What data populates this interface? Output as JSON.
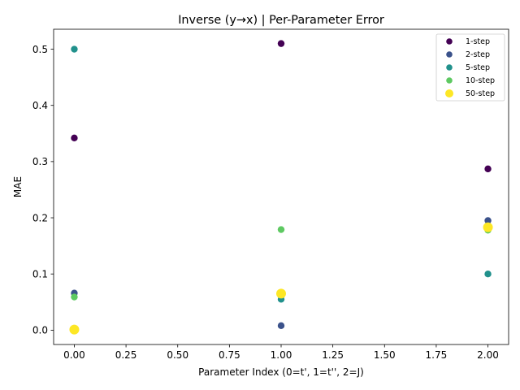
{
  "chart_data": {
    "type": "scatter",
    "title": "Inverse (y→x) | Per-Parameter Error",
    "xlabel": "Parameter Index (0=t', 1=t'', 2=J)",
    "ylabel": "MAE",
    "xlim": [
      -0.1,
      2.1
    ],
    "ylim": [
      -0.0255,
      0.5355
    ],
    "x_ticks": [
      0.0,
      0.25,
      0.5,
      0.75,
      1.0,
      1.25,
      1.5,
      1.75,
      2.0
    ],
    "x_tick_labels": [
      "0.00",
      "0.25",
      "0.50",
      "0.75",
      "1.00",
      "1.25",
      "1.50",
      "1.75",
      "2.00"
    ],
    "y_ticks": [
      0.0,
      0.1,
      0.2,
      0.3,
      0.4,
      0.5
    ],
    "y_tick_labels": [
      "0.0",
      "0.1",
      "0.2",
      "0.3",
      "0.4",
      "0.5"
    ],
    "grid": false,
    "legend_position": "top-right",
    "series": [
      {
        "name": "1-step",
        "color": "#440154",
        "x": [
          0,
          1,
          2
        ],
        "y": [
          0.342,
          0.51,
          0.287
        ]
      },
      {
        "name": "2-step",
        "color": "#3b528b",
        "x": [
          0,
          1,
          2
        ],
        "y": [
          0.066,
          0.008,
          0.195
        ]
      },
      {
        "name": "5-step",
        "color": "#21918c",
        "x": [
          0,
          1,
          2
        ],
        "y": [
          0.5,
          0.055,
          0.1
        ]
      },
      {
        "name": "10-step",
        "color": "#5ec962",
        "x": [
          0,
          1,
          2
        ],
        "y": [
          0.059,
          0.179,
          0.178
        ]
      },
      {
        "name": "50-step",
        "color": "#fde725",
        "x": [
          0,
          1,
          2
        ],
        "y": [
          0.001,
          0.065,
          0.183
        ]
      }
    ]
  }
}
